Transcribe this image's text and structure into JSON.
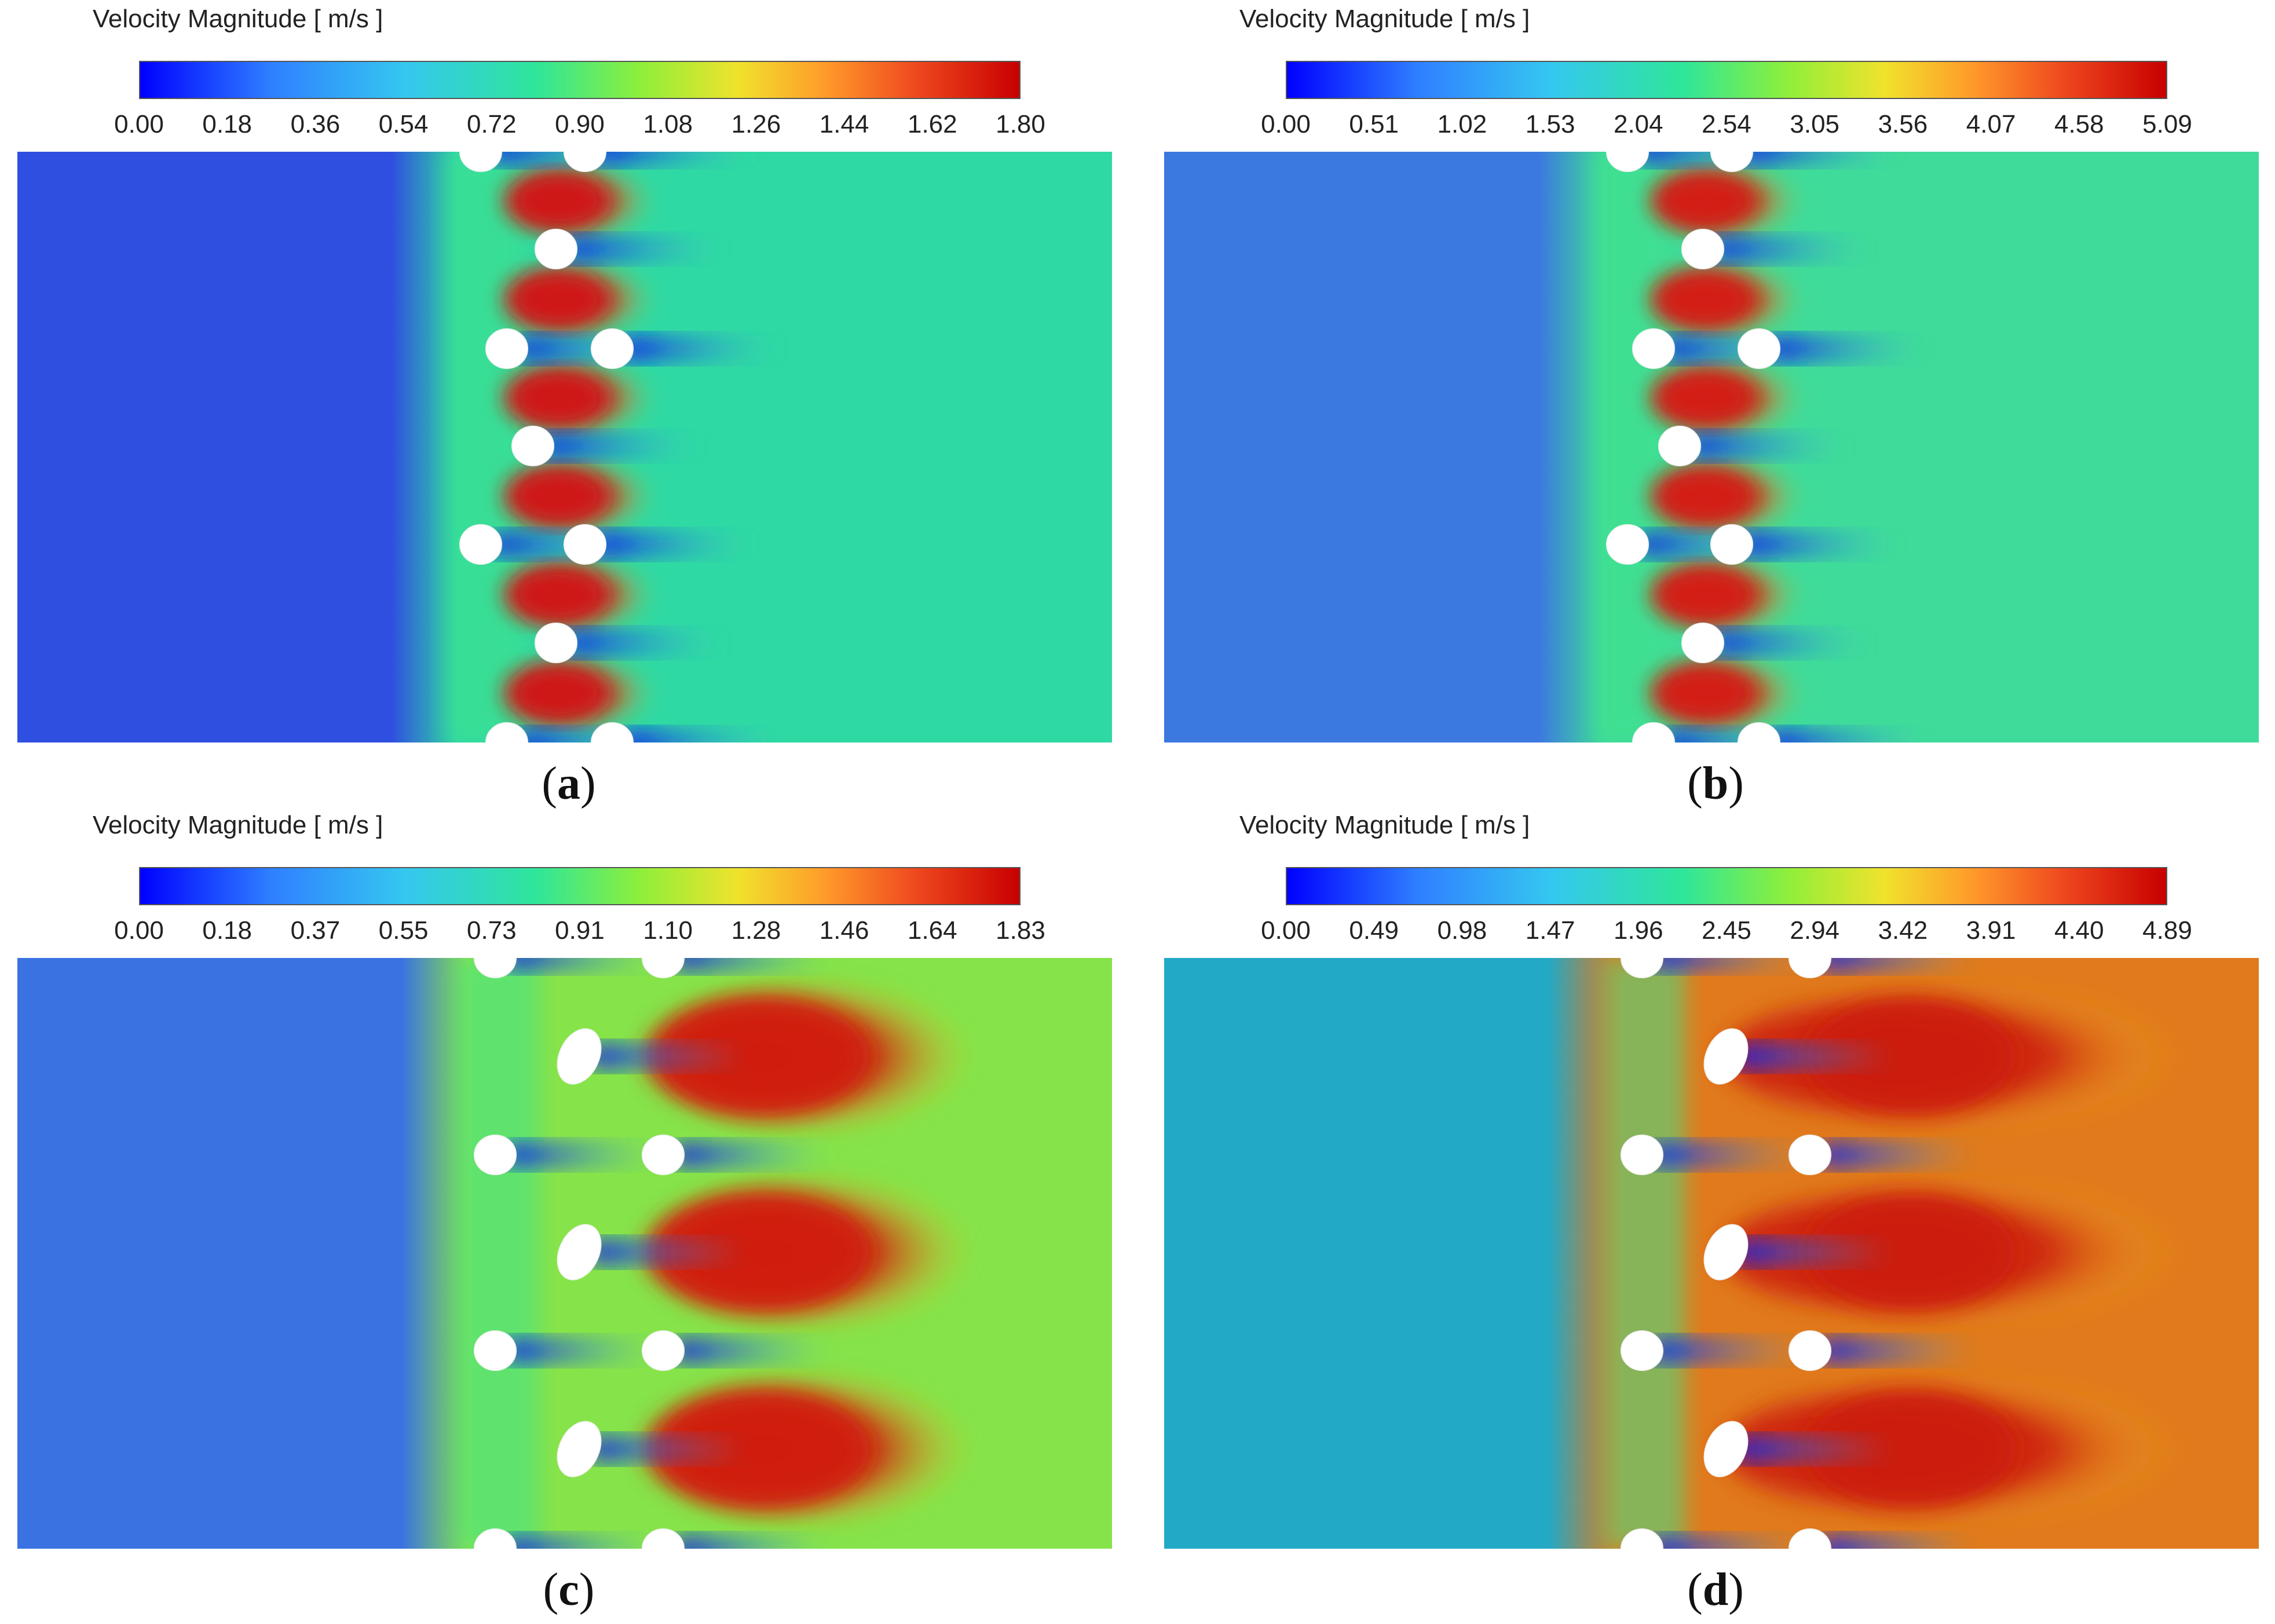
{
  "panels": [
    {
      "id": "a",
      "legend_title": "Velocity Magnitude [ m/s ]",
      "ticks": [
        "0.00",
        "0.18",
        "0.36",
        "0.54",
        "0.72",
        "0.90",
        "1.08",
        "1.26",
        "1.44",
        "1.62",
        "1.80"
      ],
      "caption_open": "(",
      "caption_letter": "a",
      "caption_close": ")",
      "upstream_color": "#2f4fe0",
      "downstream_color": "#2fd9a3",
      "jet_color": "#d01616"
    },
    {
      "id": "b",
      "legend_title": "Velocity Magnitude [ m/s ]",
      "ticks": [
        "0.00",
        "0.51",
        "1.02",
        "1.53",
        "2.04",
        "2.54",
        "3.05",
        "3.56",
        "4.07",
        "4.58",
        "5.09"
      ],
      "caption_open": "(",
      "caption_letter": "b",
      "caption_close": ")",
      "upstream_color": "#3b78e0",
      "downstream_color": "#3fdb9a",
      "jet_color": "#d41a12"
    },
    {
      "id": "c",
      "legend_title": "Velocity Magnitude [ m/s ]",
      "ticks": [
        "0.00",
        "0.18",
        "0.37",
        "0.55",
        "0.73",
        "0.91",
        "1.10",
        "1.28",
        "1.46",
        "1.64",
        "1.83"
      ],
      "caption_open": "(",
      "caption_letter": "c",
      "caption_close": ")",
      "upstream_color": "#3a72e2",
      "downstream_color": "#86e34a",
      "jet_color": "#d11d10"
    },
    {
      "id": "d",
      "legend_title": "Velocity Magnitude [ m/s ]",
      "ticks": [
        "0.00",
        "0.49",
        "0.98",
        "1.47",
        "1.96",
        "2.45",
        "2.94",
        "3.42",
        "3.91",
        "4.40",
        "4.89"
      ],
      "caption_open": "(",
      "caption_letter": "d",
      "caption_close": ")",
      "upstream_color": "#22a9c6",
      "downstream_color": "#e07a1c",
      "jet_color": "#cc1f10"
    }
  ]
}
